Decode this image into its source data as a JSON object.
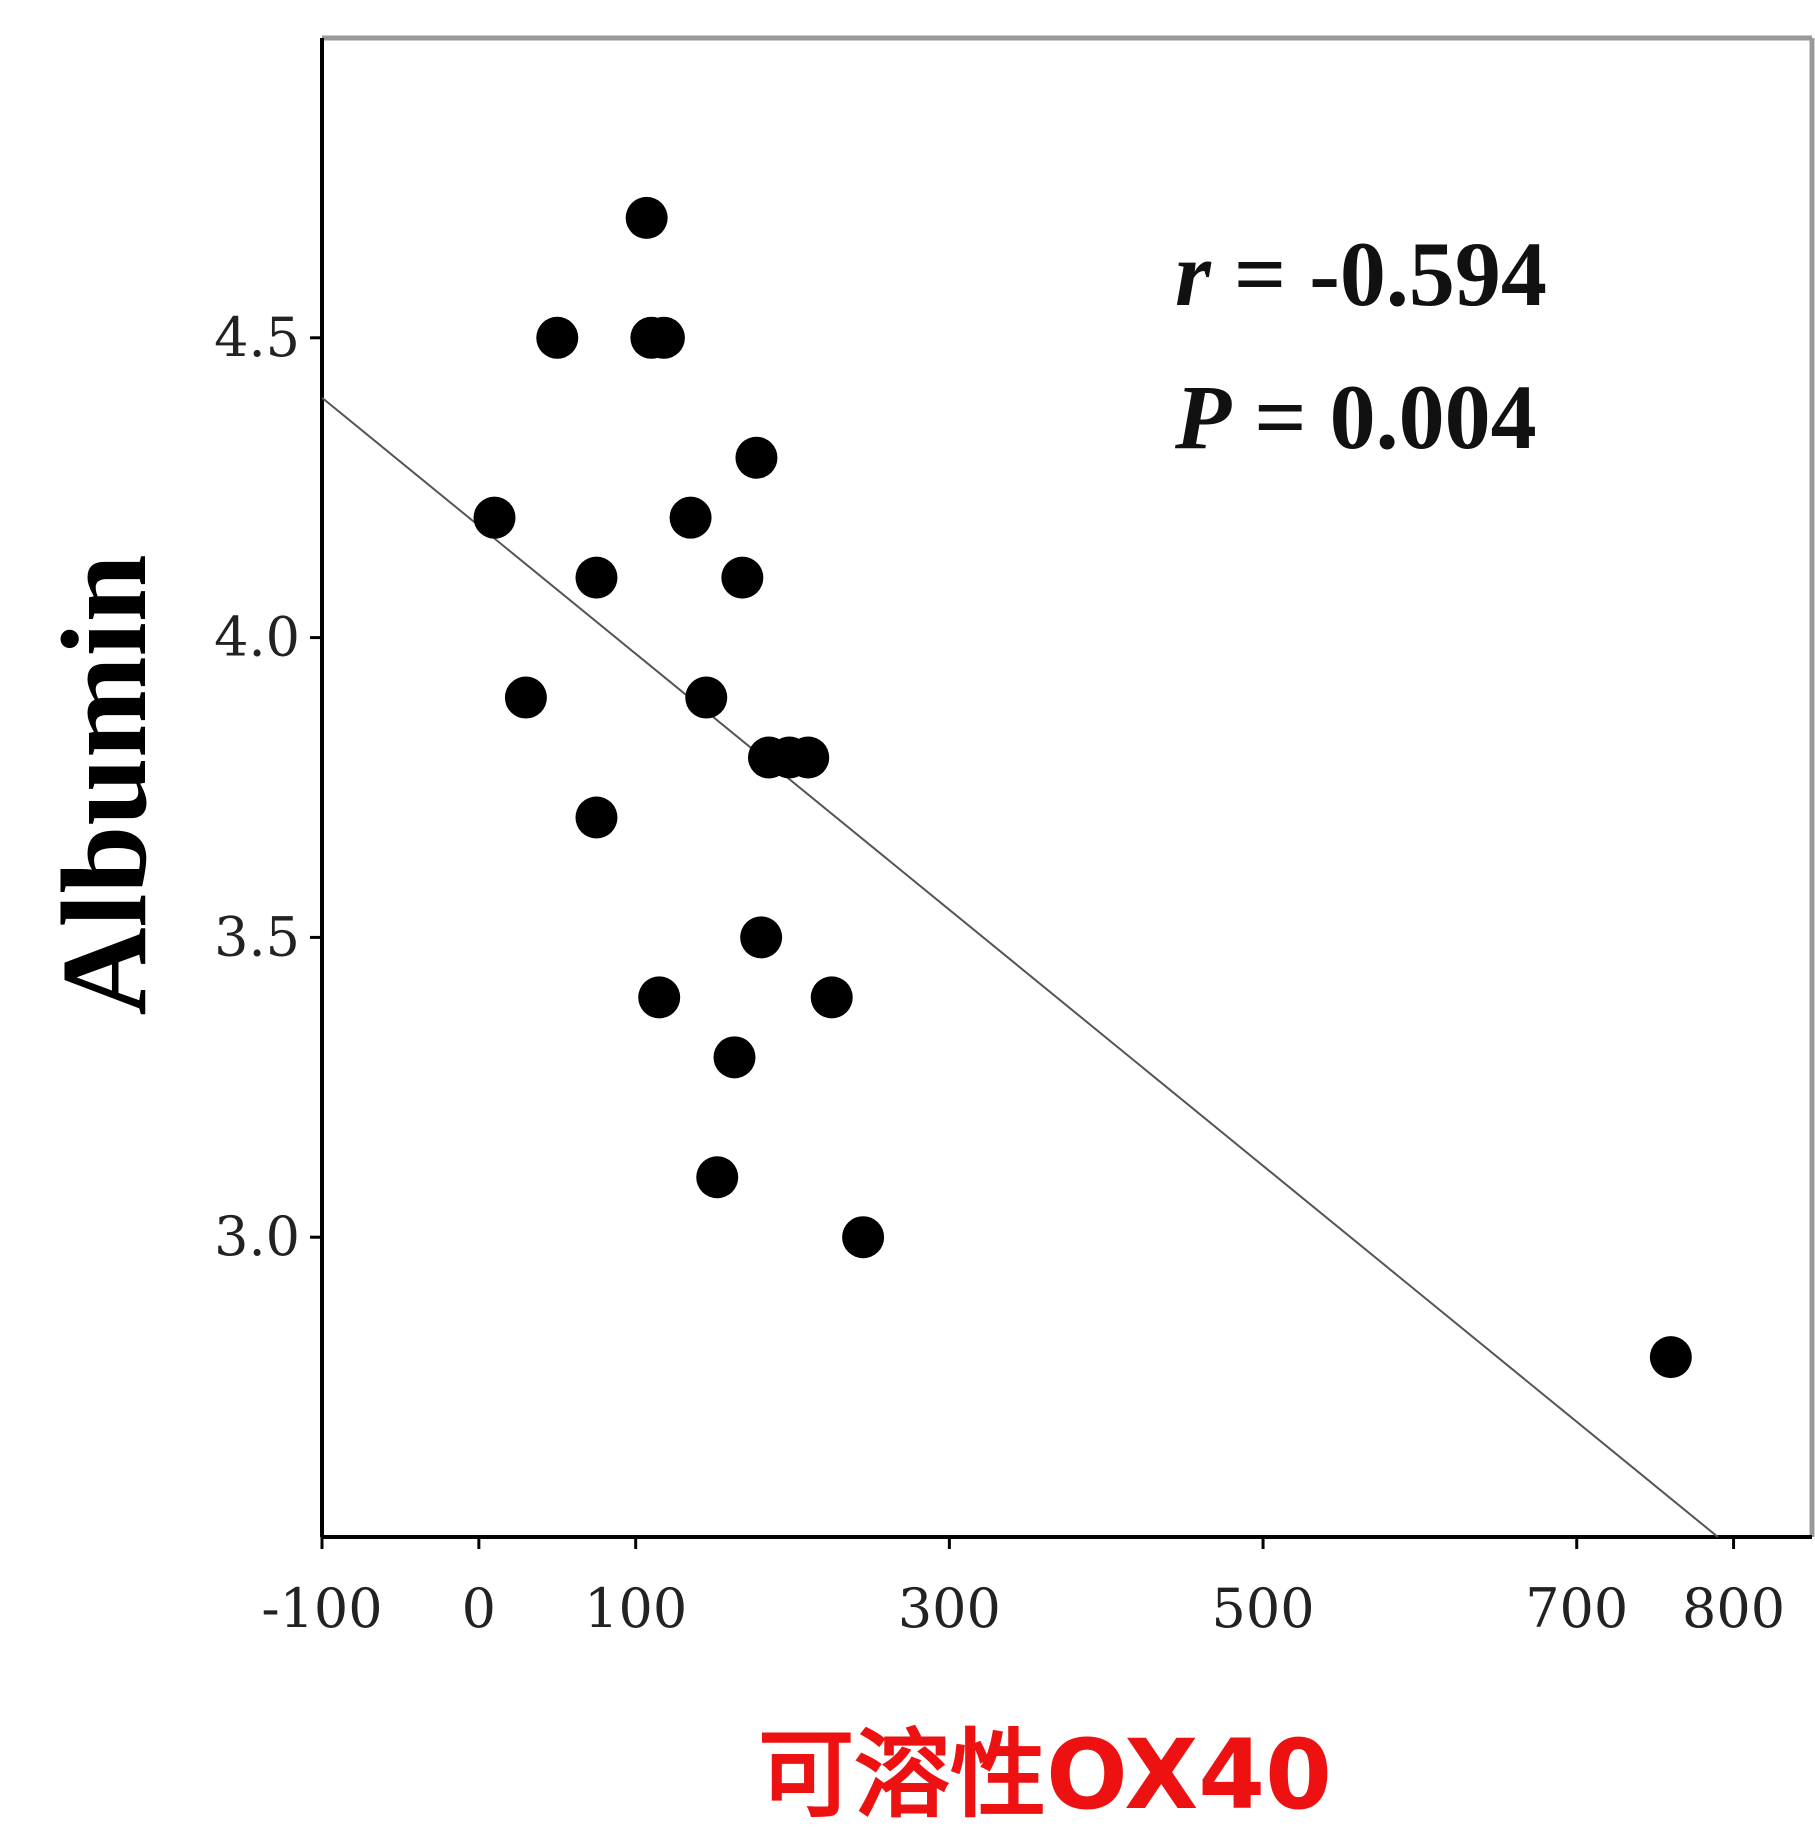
{
  "chart_data": {
    "type": "scatter",
    "xlabel": "可溶性OX40",
    "ylabel": "Albumin",
    "xlim": [
      -100,
      850
    ],
    "ylim": [
      2.5,
      5.0
    ],
    "x_ticks": [
      "-100",
      "0",
      "100",
      "300",
      "500",
      "700",
      "800"
    ],
    "x_tick_values": [
      -100,
      0,
      100,
      300,
      500,
      700,
      800
    ],
    "y_ticks": [
      "3.0",
      "3.5",
      "4.0",
      "4.5"
    ],
    "y_tick_values": [
      3.0,
      3.5,
      4.0,
      4.5
    ],
    "grid": false,
    "annotations": {
      "r_symbol": "r",
      "r_value": " = -0.594",
      "p_symbol": "P",
      "p_value": " = 0.004"
    },
    "points": [
      {
        "x": 107,
        "y": 4.7
      },
      {
        "x": 50,
        "y": 4.5
      },
      {
        "x": 110,
        "y": 4.5
      },
      {
        "x": 118,
        "y": 4.5
      },
      {
        "x": 177,
        "y": 4.3
      },
      {
        "x": 10,
        "y": 4.2
      },
      {
        "x": 135,
        "y": 4.2
      },
      {
        "x": 75,
        "y": 4.1
      },
      {
        "x": 168,
        "y": 4.1
      },
      {
        "x": 30,
        "y": 3.9
      },
      {
        "x": 145,
        "y": 3.9
      },
      {
        "x": 185,
        "y": 3.8
      },
      {
        "x": 198,
        "y": 3.8
      },
      {
        "x": 210,
        "y": 3.8
      },
      {
        "x": 75,
        "y": 3.7
      },
      {
        "x": 180,
        "y": 3.5
      },
      {
        "x": 115,
        "y": 3.4
      },
      {
        "x": 225,
        "y": 3.4
      },
      {
        "x": 163,
        "y": 3.3
      },
      {
        "x": 152,
        "y": 3.1
      },
      {
        "x": 245,
        "y": 3.0
      },
      {
        "x": 760,
        "y": 2.8
      }
    ],
    "regression_line": {
      "x": [
        -100,
        790
      ],
      "y": [
        4.4,
        2.5
      ]
    },
    "colors": {
      "points": "#000000",
      "line": "#555555",
      "axes": "#000000",
      "frame": "#999999",
      "xlabel": "#ee1111"
    }
  }
}
